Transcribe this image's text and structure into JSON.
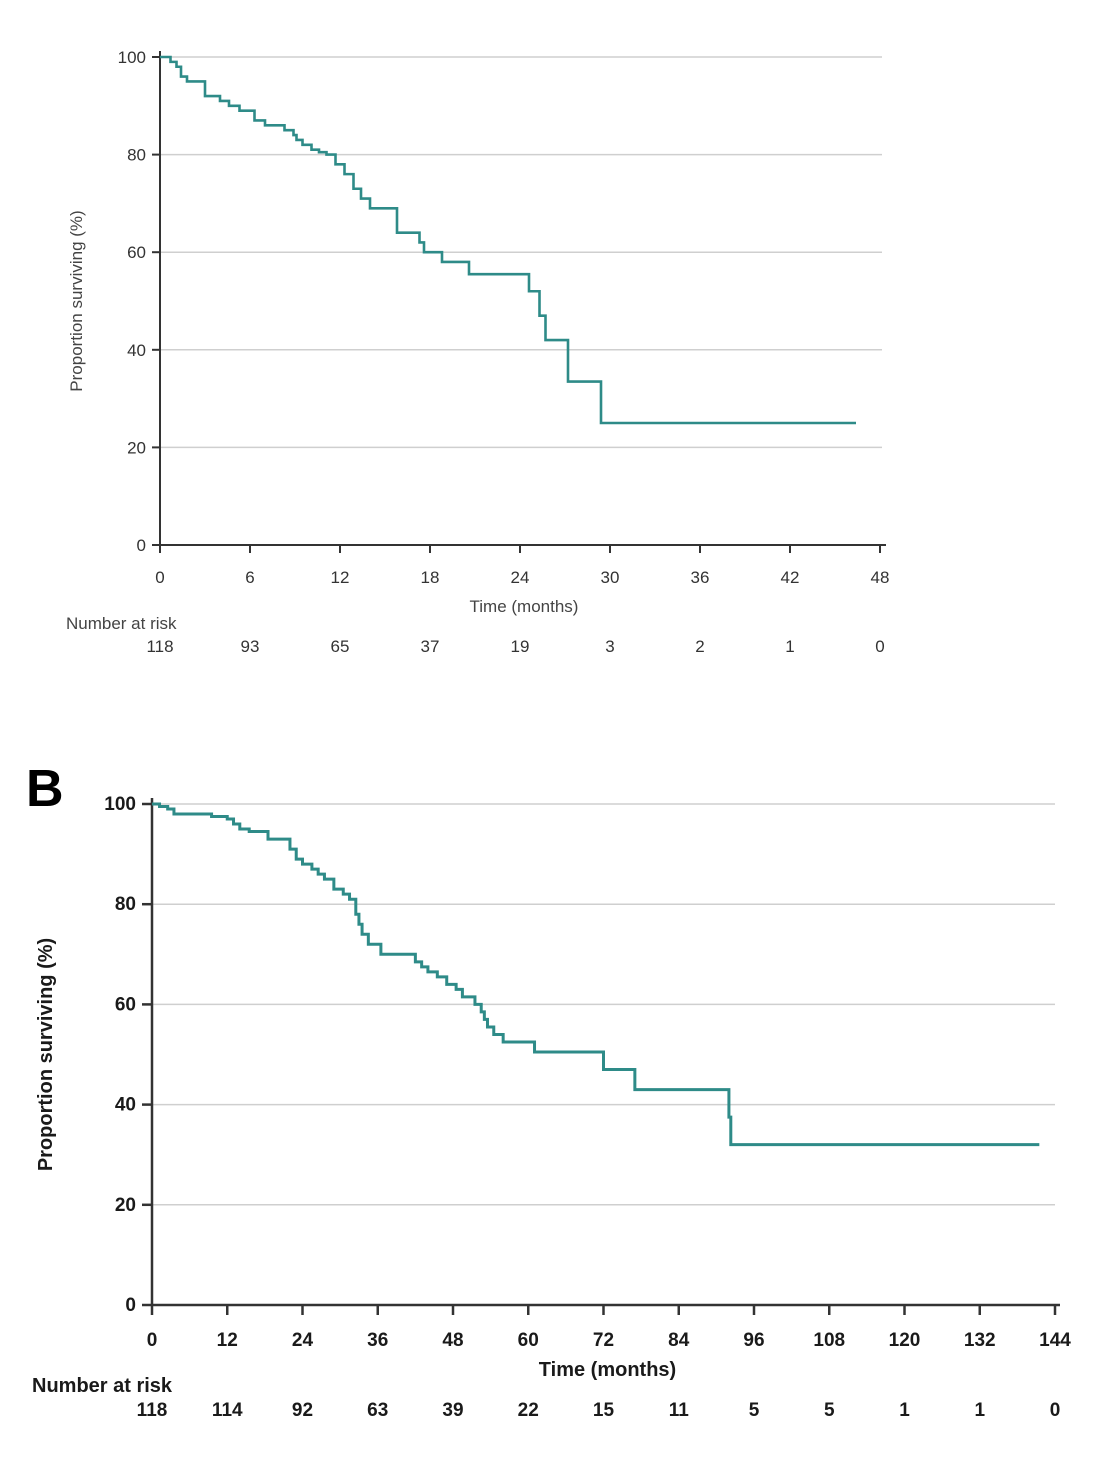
{
  "colors": {
    "curve": "#2e8b88",
    "grid": "#cfcfcf",
    "axis": "#333333"
  },
  "chart_data": [
    {
      "type": "line",
      "panel": "",
      "xlabel": "Time (months)",
      "ylabel": "Proportion surviving (%)",
      "xlim": [
        0,
        48
      ],
      "ylim": [
        0,
        100
      ],
      "x_ticks": [
        "0",
        "6",
        "12",
        "18",
        "24",
        "30",
        "36",
        "42",
        "48"
      ],
      "y_ticks": [
        "0",
        "20",
        "40",
        "60",
        "80",
        "100"
      ],
      "risk_label": "Number at risk",
      "number_at_risk": [
        "118",
        "93",
        "65",
        "37",
        "19",
        "3",
        "2",
        "1",
        "0"
      ],
      "series": [
        {
          "name": "Survival",
          "step": true,
          "x": [
            0,
            0.7,
            1.1,
            1.4,
            1.8,
            3,
            4,
            4.6,
            5.3,
            6.3,
            7,
            8.3,
            8.9,
            9.1,
            9.5,
            10.1,
            10.6,
            11.1,
            11.7,
            12.3,
            12.9,
            13.4,
            14,
            15.8,
            17.3,
            17.6,
            18.8,
            20.6,
            24.6,
            25.3,
            25.7,
            27.2,
            29.4,
            46.4
          ],
          "y": [
            100,
            99,
            98,
            96,
            95,
            92,
            91,
            90,
            89,
            87,
            86,
            85,
            84,
            83,
            82,
            81,
            80.5,
            80,
            78,
            76,
            73,
            71,
            69,
            64,
            62,
            60,
            58,
            55.5,
            52,
            47,
            42,
            33.5,
            25,
            25
          ]
        }
      ]
    },
    {
      "type": "line",
      "panel": "B",
      "xlabel": "Time (months)",
      "ylabel": "Proportion surviving (%)",
      "xlim": [
        0,
        144
      ],
      "ylim": [
        0,
        100
      ],
      "x_ticks": [
        "0",
        "12",
        "24",
        "36",
        "48",
        "60",
        "72",
        "84",
        "96",
        "108",
        "120",
        "132",
        "144"
      ],
      "y_ticks": [
        "0",
        "20",
        "40",
        "60",
        "80",
        "100"
      ],
      "risk_label": "Number at risk",
      "number_at_risk": [
        "118",
        "114",
        "92",
        "63",
        "39",
        "22",
        "15",
        "11",
        "5",
        "5",
        "1",
        "1",
        "0"
      ],
      "series": [
        {
          "name": "Survival",
          "step": true,
          "x": [
            0,
            1.2,
            2.5,
            3.5,
            9.5,
            12,
            13,
            14,
            15.5,
            18.5,
            22,
            23,
            24,
            25.5,
            26.5,
            27.5,
            29,
            30.5,
            31.5,
            32.5,
            33,
            33.5,
            34.5,
            36.5,
            42,
            43,
            44,
            45.5,
            47,
            48.5,
            49.5,
            51.5,
            52.5,
            53,
            53.5,
            54.5,
            56,
            61,
            72,
            77,
            92,
            92.3,
            141.5
          ],
          "y": [
            100,
            99.5,
            99,
            98,
            97.5,
            97,
            96,
            95,
            94.5,
            93,
            91,
            89,
            88,
            87,
            86,
            85,
            83,
            82,
            81,
            78,
            76,
            74,
            72,
            70,
            68.5,
            67.5,
            66.5,
            65.5,
            64,
            63,
            61.5,
            60,
            58.5,
            57,
            55.5,
            54,
            52.5,
            50.5,
            47,
            43,
            37.5,
            32,
            32
          ]
        }
      ]
    }
  ]
}
